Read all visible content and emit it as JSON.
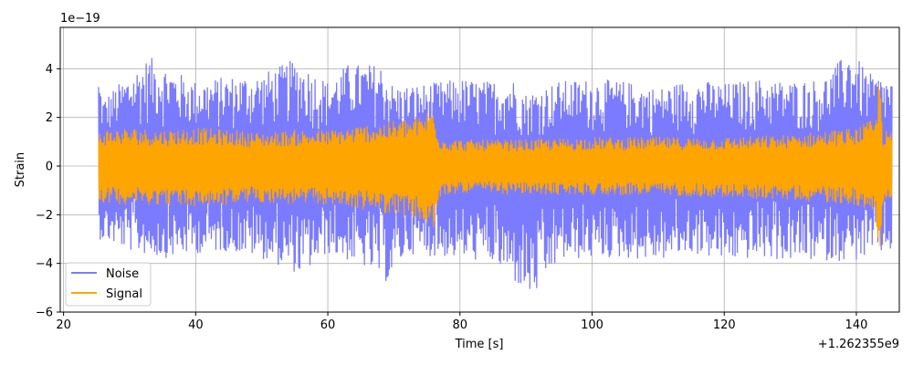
{
  "chart_data": {
    "type": "line",
    "xlabel": "Time [s]",
    "ylabel": "Strain",
    "x_offset_label": "+1.262355e9",
    "y_scale_label": "1e−19",
    "xlim": [
      19.5,
      146.5
    ],
    "ylim": [
      -6.0,
      5.7
    ],
    "x_ticks": [
      20,
      40,
      60,
      80,
      100,
      120,
      140
    ],
    "y_ticks": [
      -6,
      -4,
      -2,
      0,
      2,
      4
    ],
    "x_tick_labels": [
      "20",
      "40",
      "60",
      "80",
      "100",
      "120",
      "140"
    ],
    "y_tick_labels": [
      "−6",
      "−4",
      "−2",
      "0",
      "2",
      "4"
    ],
    "grid": true,
    "legend_position": "lower-left",
    "x_range": [
      25.3,
      145.4
    ],
    "series": [
      {
        "name": "Noise",
        "color": "#7b7bff",
        "amplitude_envelope": [
          [
            25.3,
            3.8
          ],
          [
            26,
            2.8
          ],
          [
            30,
            3.8
          ],
          [
            33,
            4.5
          ],
          [
            37,
            3.9
          ],
          [
            40,
            3.5
          ],
          [
            45,
            3.7
          ],
          [
            50,
            3.8
          ],
          [
            55,
            4.4
          ],
          [
            60,
            3.5
          ],
          [
            63,
            4.2
          ],
          [
            68,
            4.2
          ],
          [
            70,
            3.3
          ],
          [
            75,
            3.4
          ],
          [
            80,
            3.6
          ],
          [
            84,
            3.5
          ],
          [
            88,
            3.6
          ],
          [
            90,
            3.0
          ],
          [
            91,
            3.1
          ],
          [
            95,
            3.5
          ],
          [
            100,
            3.6
          ],
          [
            105,
            3.5
          ],
          [
            110,
            3.2
          ],
          [
            115,
            3.6
          ],
          [
            120,
            3.4
          ],
          [
            125,
            3.6
          ],
          [
            130,
            3.5
          ],
          [
            135,
            3.6
          ],
          [
            139,
            4.8
          ],
          [
            142,
            3.8
          ],
          [
            145.4,
            3.6
          ]
        ],
        "min_envelope": [
          [
            25.3,
            -3.0
          ],
          [
            30,
            -3.5
          ],
          [
            35,
            -3.8
          ],
          [
            40,
            -3.6
          ],
          [
            45,
            -3.5
          ],
          [
            50,
            -3.8
          ],
          [
            56,
            -4.5
          ],
          [
            60,
            -3.6
          ],
          [
            65,
            -4.1
          ],
          [
            69,
            -4.8
          ],
          [
            72,
            -3.6
          ],
          [
            75,
            -3.7
          ],
          [
            80,
            -3.8
          ],
          [
            85,
            -4.0
          ],
          [
            91,
            -5.5
          ],
          [
            95,
            -3.9
          ],
          [
            100,
            -3.8
          ],
          [
            105,
            -3.8
          ],
          [
            110,
            -3.9
          ],
          [
            115,
            -3.6
          ],
          [
            120,
            -3.9
          ],
          [
            125,
            -3.8
          ],
          [
            130,
            -3.9
          ],
          [
            135,
            -3.9
          ],
          [
            140,
            -3.9
          ],
          [
            145.4,
            -3.5
          ]
        ]
      },
      {
        "name": "Signal",
        "color": "#ffa500",
        "amplitude_envelope": [
          [
            25.3,
            1.5
          ],
          [
            30,
            1.6
          ],
          [
            35,
            1.5
          ],
          [
            40,
            1.6
          ],
          [
            45,
            1.5
          ],
          [
            50,
            1.4
          ],
          [
            55,
            1.5
          ],
          [
            60,
            1.5
          ],
          [
            65,
            1.7
          ],
          [
            70,
            1.9
          ],
          [
            74,
            2.1
          ],
          [
            76,
            2.5
          ],
          [
            77,
            1.2
          ],
          [
            80,
            1.1
          ],
          [
            90,
            1.1
          ],
          [
            100,
            1.2
          ],
          [
            110,
            1.2
          ],
          [
            120,
            1.2
          ],
          [
            130,
            1.3
          ],
          [
            140,
            1.6
          ],
          [
            143,
            2.0
          ],
          [
            143.5,
            4.4
          ],
          [
            144,
            1.5
          ],
          [
            145.4,
            1.4
          ]
        ],
        "min_envelope": [
          [
            25.3,
            -1.5
          ],
          [
            30,
            -1.6
          ],
          [
            35,
            -1.6
          ],
          [
            40,
            -1.7
          ],
          [
            45,
            -1.6
          ],
          [
            50,
            -1.5
          ],
          [
            55,
            -1.6
          ],
          [
            60,
            -1.6
          ],
          [
            65,
            -1.8
          ],
          [
            70,
            -2.0
          ],
          [
            74,
            -2.3
          ],
          [
            76,
            -2.8
          ],
          [
            77,
            -1.3
          ],
          [
            80,
            -1.1
          ],
          [
            90,
            -1.2
          ],
          [
            100,
            -1.2
          ],
          [
            110,
            -1.2
          ],
          [
            120,
            -1.3
          ],
          [
            130,
            -1.4
          ],
          [
            140,
            -1.6
          ],
          [
            143,
            -2.2
          ],
          [
            143.5,
            -4.0
          ],
          [
            144,
            -1.6
          ],
          [
            145.4,
            -1.5
          ]
        ]
      }
    ]
  }
}
